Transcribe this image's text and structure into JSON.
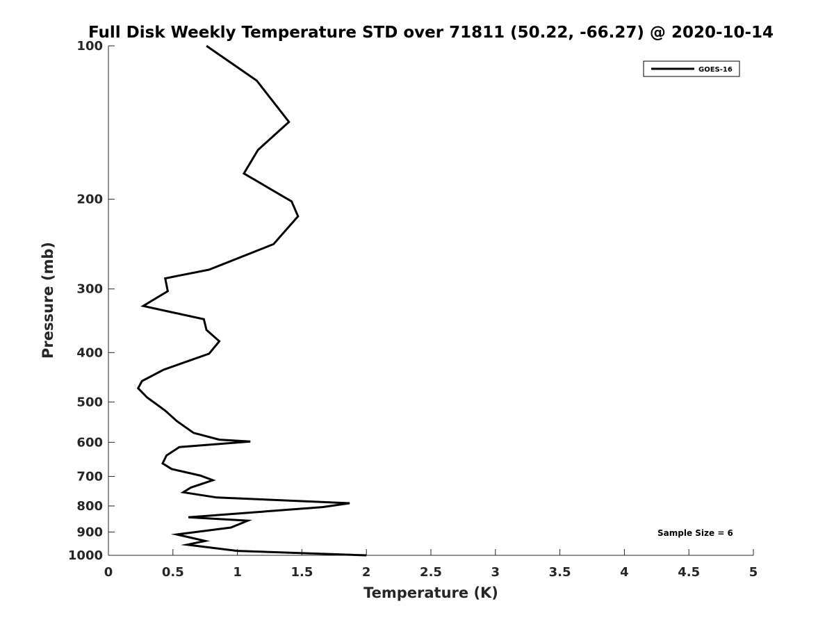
{
  "chart_data": {
    "type": "line",
    "title": "Full Disk Weekly Temperature STD over 71811 (50.22, -66.27) @ 2020-10-14",
    "xlabel": "Temperature (K)",
    "ylabel": "Pressure (mb)",
    "xlim": [
      0,
      5
    ],
    "ylim": [
      100,
      1000
    ],
    "yscale": "log",
    "y_reversed": true,
    "grid": false,
    "x_ticks": [
      0,
      0.5,
      1,
      1.5,
      2,
      2.5,
      3,
      3.5,
      4,
      4.5,
      5
    ],
    "x_tick_labels": [
      "0",
      "0.5",
      "1",
      "1.5",
      "2",
      "2.5",
      "3",
      "3.5",
      "4",
      "4.5",
      "5"
    ],
    "y_ticks": [
      100,
      200,
      300,
      400,
      500,
      600,
      700,
      800,
      900,
      1000
    ],
    "y_tick_labels": [
      "100",
      "200",
      "300",
      "400",
      "500",
      "600",
      "700",
      "800",
      "900",
      "1000"
    ],
    "legend_position": "top-right",
    "annotation": "Sample Size = 6",
    "series": [
      {
        "name": "GOES-16",
        "color": "#000000",
        "x": [
          0.76,
          1.15,
          1.4,
          1.16,
          1.05,
          1.42,
          1.47,
          1.28,
          0.78,
          0.44,
          0.46,
          0.27,
          0.74,
          0.76,
          0.86,
          0.78,
          0.43,
          0.26,
          0.23,
          0.3,
          0.44,
          0.53,
          0.66,
          0.86,
          1.1,
          0.55,
          0.45,
          0.42,
          0.49,
          0.71,
          0.81,
          0.64,
          0.58,
          0.84,
          1.87,
          1.66,
          0.62,
          1.08,
          0.95,
          0.53,
          0.75,
          0.61,
          1.0,
          2.0
        ],
        "y": [
          100,
          117,
          141,
          160,
          178,
          202,
          216,
          245,
          275,
          286,
          303,
          324,
          344,
          361,
          380,
          402,
          432,
          455,
          470,
          490,
          520,
          545,
          575,
          593,
          598,
          613,
          637,
          660,
          677,
          697,
          712,
          736,
          752,
          770,
          790,
          804,
          842,
          855,
          882,
          910,
          937,
          953,
          980,
          1000
        ]
      }
    ]
  }
}
